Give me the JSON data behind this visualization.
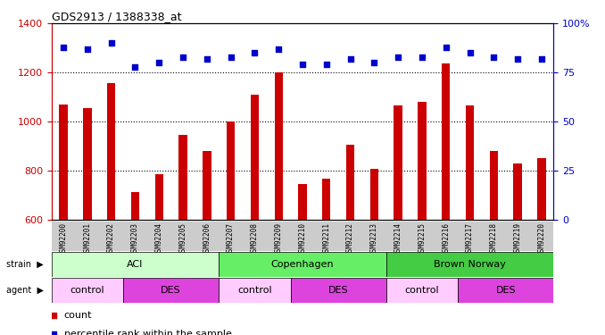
{
  "title": "GDS2913 / 1388338_at",
  "samples": [
    "GSM92200",
    "GSM92201",
    "GSM92202",
    "GSM92203",
    "GSM92204",
    "GSM92205",
    "GSM92206",
    "GSM92207",
    "GSM92208",
    "GSM92209",
    "GSM92210",
    "GSM92211",
    "GSM92212",
    "GSM92213",
    "GSM92214",
    "GSM92215",
    "GSM92216",
    "GSM92217",
    "GSM92218",
    "GSM92219",
    "GSM92220"
  ],
  "counts": [
    1070,
    1055,
    1155,
    710,
    785,
    945,
    880,
    1000,
    1110,
    1200,
    745,
    765,
    905,
    805,
    1065,
    1080,
    1235,
    1065,
    880,
    830,
    850
  ],
  "percentiles": [
    88,
    87,
    90,
    78,
    80,
    83,
    82,
    83,
    85,
    87,
    79,
    79,
    82,
    80,
    83,
    83,
    88,
    85,
    83,
    82,
    82
  ],
  "ylim_left": [
    600,
    1400
  ],
  "ylim_right": [
    0,
    100
  ],
  "bar_color": "#cc0000",
  "dot_color": "#0000cc",
  "bg_color": "#ffffff",
  "strain_groups": [
    {
      "label": "ACI",
      "start": 0,
      "end": 6,
      "color": "#ccffcc"
    },
    {
      "label": "Copenhagen",
      "start": 7,
      "end": 13,
      "color": "#66ee66"
    },
    {
      "label": "Brown Norway",
      "start": 14,
      "end": 20,
      "color": "#44cc44"
    }
  ],
  "agent_groups": [
    {
      "label": "control",
      "start": 0,
      "end": 2,
      "color": "#ffccff"
    },
    {
      "label": "DES",
      "start": 3,
      "end": 6,
      "color": "#dd44dd"
    },
    {
      "label": "control",
      "start": 7,
      "end": 9,
      "color": "#ffccff"
    },
    {
      "label": "DES",
      "start": 10,
      "end": 13,
      "color": "#dd44dd"
    },
    {
      "label": "control",
      "start": 14,
      "end": 16,
      "color": "#ffccff"
    },
    {
      "label": "DES",
      "start": 17,
      "end": 20,
      "color": "#dd44dd"
    }
  ],
  "left_yticks": [
    600,
    800,
    1000,
    1200,
    1400
  ],
  "right_yticks": [
    0,
    25,
    50,
    75,
    100
  ],
  "right_ytick_labels": [
    "0",
    "25",
    "50",
    "75",
    "100%"
  ],
  "dotted_lines": [
    800,
    1000,
    1200
  ],
  "legend_items": [
    {
      "color": "#cc0000",
      "label": "count"
    },
    {
      "color": "#0000cc",
      "label": "percentile rank within the sample"
    }
  ]
}
